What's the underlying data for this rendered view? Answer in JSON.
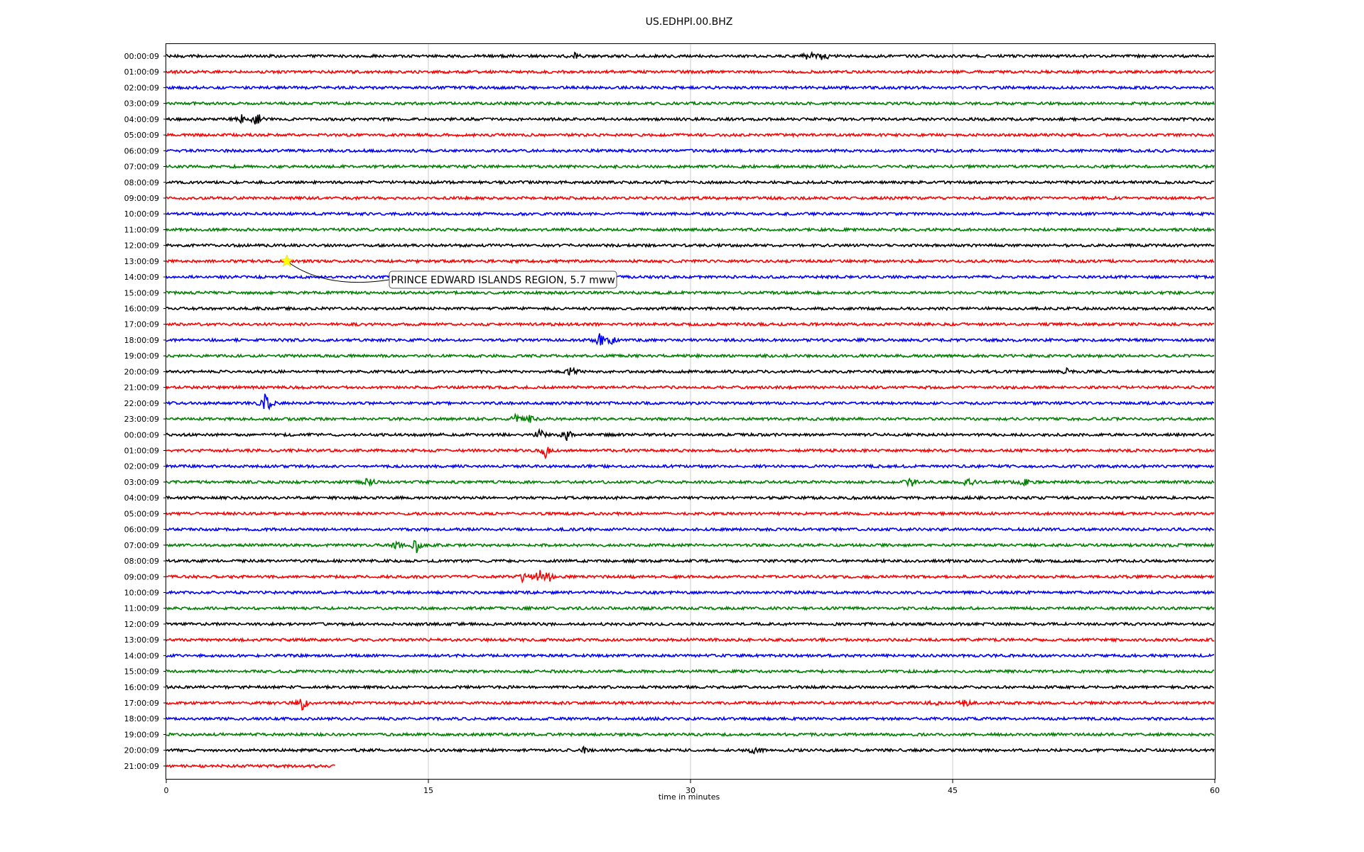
{
  "chart_data": {
    "type": "line",
    "title": "US.EDHPI.00.BHZ",
    "xlabel": "time in minutes",
    "ylabel": "",
    "xlim": [
      0,
      60
    ],
    "x_ticks": [
      "0",
      "15",
      "30",
      "45",
      "60"
    ],
    "x_tick_values": [
      0,
      15,
      30,
      45,
      60
    ],
    "grid": "vertical",
    "legend": "none",
    "colors": [
      "#000000",
      "#ff0000",
      "#0000ff",
      "#008000"
    ],
    "rows": [
      {
        "label": "00:00:09",
        "end_minute": 60
      },
      {
        "label": "01:00:09",
        "end_minute": 60
      },
      {
        "label": "02:00:09",
        "end_minute": 60
      },
      {
        "label": "03:00:09",
        "end_minute": 60
      },
      {
        "label": "04:00:09",
        "end_minute": 60
      },
      {
        "label": "05:00:09",
        "end_minute": 60
      },
      {
        "label": "06:00:09",
        "end_minute": 60
      },
      {
        "label": "07:00:09",
        "end_minute": 60
      },
      {
        "label": "08:00:09",
        "end_minute": 60
      },
      {
        "label": "09:00:09",
        "end_minute": 60
      },
      {
        "label": "10:00:09",
        "end_minute": 60
      },
      {
        "label": "11:00:09",
        "end_minute": 60
      },
      {
        "label": "12:00:09",
        "end_minute": 60
      },
      {
        "label": "13:00:09",
        "end_minute": 60
      },
      {
        "label": "14:00:09",
        "end_minute": 60
      },
      {
        "label": "15:00:09",
        "end_minute": 60
      },
      {
        "label": "16:00:09",
        "end_minute": 60
      },
      {
        "label": "17:00:09",
        "end_minute": 60
      },
      {
        "label": "18:00:09",
        "end_minute": 60
      },
      {
        "label": "19:00:09",
        "end_minute": 60
      },
      {
        "label": "20:00:09",
        "end_minute": 60
      },
      {
        "label": "21:00:09",
        "end_minute": 60
      },
      {
        "label": "22:00:09",
        "end_minute": 60
      },
      {
        "label": "23:00:09",
        "end_minute": 60
      },
      {
        "label": "00:00:09",
        "end_minute": 60
      },
      {
        "label": "01:00:09",
        "end_minute": 60
      },
      {
        "label": "02:00:09",
        "end_minute": 60
      },
      {
        "label": "03:00:09",
        "end_minute": 60
      },
      {
        "label": "04:00:09",
        "end_minute": 60
      },
      {
        "label": "05:00:09",
        "end_minute": 60
      },
      {
        "label": "06:00:09",
        "end_minute": 60
      },
      {
        "label": "07:00:09",
        "end_minute": 60
      },
      {
        "label": "08:00:09",
        "end_minute": 60
      },
      {
        "label": "09:00:09",
        "end_minute": 60
      },
      {
        "label": "10:00:09",
        "end_minute": 60
      },
      {
        "label": "11:00:09",
        "end_minute": 60
      },
      {
        "label": "12:00:09",
        "end_minute": 60
      },
      {
        "label": "13:00:09",
        "end_minute": 60
      },
      {
        "label": "14:00:09",
        "end_minute": 60
      },
      {
        "label": "15:00:09",
        "end_minute": 60
      },
      {
        "label": "16:00:09",
        "end_minute": 60
      },
      {
        "label": "17:00:09",
        "end_minute": 60
      },
      {
        "label": "18:00:09",
        "end_minute": 60
      },
      {
        "label": "19:00:09",
        "end_minute": 60
      },
      {
        "label": "20:00:09",
        "end_minute": 60
      },
      {
        "label": "21:00:09",
        "end_minute": 9.7
      }
    ],
    "bursts": [
      {
        "row": 0,
        "minute": 23.3,
        "amp": 0.6
      },
      {
        "row": 0,
        "minute": 36.8,
        "amp": 0.9
      },
      {
        "row": 0,
        "minute": 37.6,
        "amp": 1.0
      },
      {
        "row": 4,
        "minute": 4.3,
        "amp": 0.7
      },
      {
        "row": 4,
        "minute": 5.2,
        "amp": 1.3
      },
      {
        "row": 18,
        "minute": 24.8,
        "amp": 1.2
      },
      {
        "row": 18,
        "minute": 25.5,
        "amp": 0.6
      },
      {
        "row": 20,
        "minute": 23.2,
        "amp": 0.8
      },
      {
        "row": 20,
        "minute": 51.5,
        "amp": 0.4
      },
      {
        "row": 22,
        "minute": 5.7,
        "amp": 2.3
      },
      {
        "row": 23,
        "minute": 20.0,
        "amp": 0.7
      },
      {
        "row": 23,
        "minute": 20.8,
        "amp": 0.5
      },
      {
        "row": 24,
        "minute": 21.4,
        "amp": 1.1
      },
      {
        "row": 24,
        "minute": 22.9,
        "amp": 1.0
      },
      {
        "row": 25,
        "minute": 21.7,
        "amp": 1.3
      },
      {
        "row": 27,
        "minute": 11.6,
        "amp": 0.9
      },
      {
        "row": 27,
        "minute": 42.6,
        "amp": 0.8
      },
      {
        "row": 27,
        "minute": 45.9,
        "amp": 1.1
      },
      {
        "row": 27,
        "minute": 49.1,
        "amp": 0.8
      },
      {
        "row": 31,
        "minute": 13.2,
        "amp": 0.6
      },
      {
        "row": 31,
        "minute": 14.3,
        "amp": 1.2
      },
      {
        "row": 33,
        "minute": 20.4,
        "amp": 0.9
      },
      {
        "row": 33,
        "minute": 21.3,
        "amp": 1.4
      },
      {
        "row": 33,
        "minute": 21.9,
        "amp": 0.8
      },
      {
        "row": 41,
        "minute": 7.8,
        "amp": 1.2
      },
      {
        "row": 41,
        "minute": 44.0,
        "amp": 0.6
      },
      {
        "row": 41,
        "minute": 45.7,
        "amp": 0.6
      },
      {
        "row": 44,
        "minute": 33.7,
        "amp": 1.1
      },
      {
        "row": 44,
        "minute": 23.9,
        "amp": 0.5
      }
    ],
    "annotations": [
      {
        "text": "PRINCE EDWARD ISLANDS REGION, 5.7 mww",
        "row": 13,
        "minute": 6.9,
        "marker": "star",
        "marker_color": "#ffff00"
      }
    ]
  }
}
